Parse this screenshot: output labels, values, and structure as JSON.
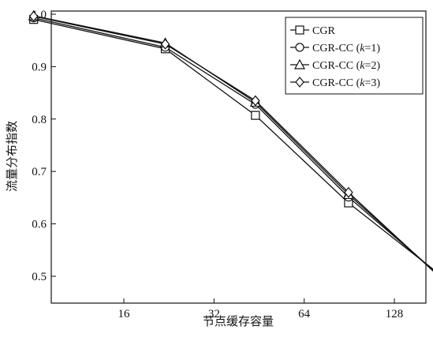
{
  "chart_data": {
    "type": "line",
    "title": "",
    "xlabel": "节点缓存容量",
    "ylabel": "流量分布指数",
    "x_ticks": [
      "16",
      "32",
      "64",
      "128"
    ],
    "y_ticks": [
      "0.5",
      "0.6",
      "0.7",
      "0.8",
      "0.9",
      "1.0"
    ],
    "ylim": [
      0.5,
      1.0
    ],
    "x": [
      8,
      22,
      44,
      90,
      180
    ],
    "series": [
      {
        "name": "CGR",
        "marker": "square",
        "values": [
          0.99,
          0.934,
          0.807,
          0.64,
          0.505
        ]
      },
      {
        "name": "CGR-CC (k=1)",
        "marker": "circle",
        "values": [
          0.993,
          0.937,
          0.828,
          0.651,
          0.503
        ]
      },
      {
        "name": "CGR-CC (k=2)",
        "marker": "triangle",
        "values": [
          0.997,
          0.945,
          0.832,
          0.656,
          0.502
        ]
      },
      {
        "name": "CGR-CC (k=3)",
        "marker": "diamond",
        "values": [
          0.996,
          0.943,
          0.835,
          0.66,
          0.5
        ]
      }
    ],
    "legend_position": "top-right",
    "grid": false,
    "line_color": "#111111"
  }
}
